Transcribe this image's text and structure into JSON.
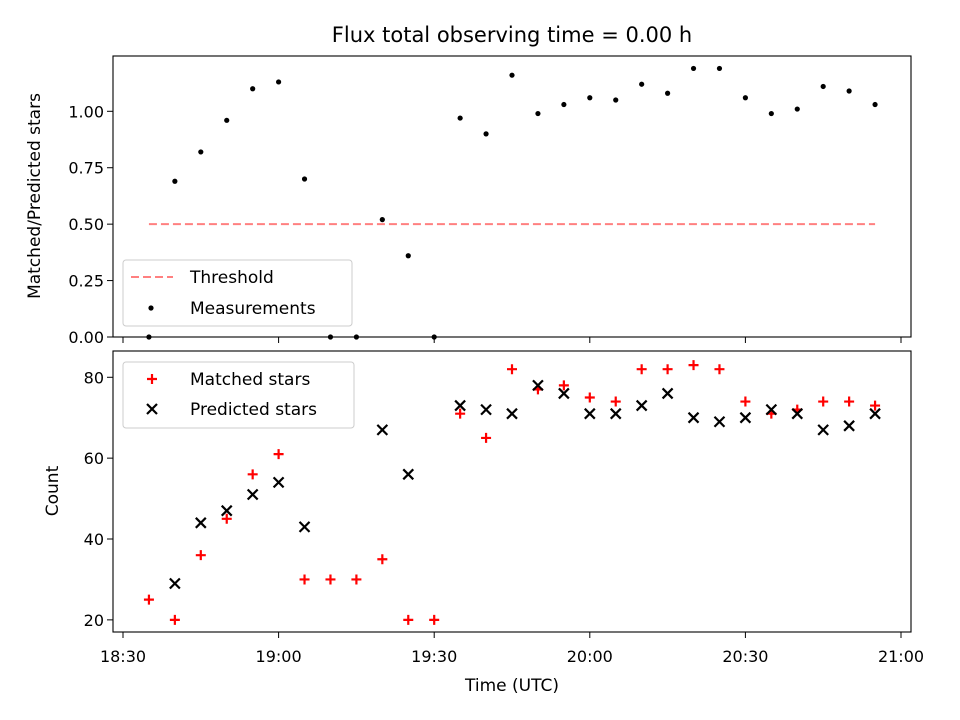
{
  "colors": {
    "threshold": "#ff8080",
    "measurements": "#000000",
    "matched": "#ff0000",
    "predicted": "#000000"
  },
  "chart_data": [
    {
      "type": "scatter",
      "title": "Flux total observing time = 0.00 h",
      "xlabel": "",
      "ylabel": "Matched/Predicted stars",
      "ylim": [
        0,
        1.245
      ],
      "yticks": [
        "0.00",
        "0.25",
        "0.50",
        "0.75",
        "1.00"
      ],
      "legend": "lower-left",
      "series": [
        {
          "name": "Threshold",
          "style": "dashed-line",
          "x": [
            "18:35",
            "20:55"
          ],
          "values": [
            0.5,
            0.5
          ]
        },
        {
          "name": "Measurements",
          "style": "dot",
          "x": [
            "18:35",
            "18:40",
            "18:45",
            "18:50",
            "18:55",
            "19:00",
            "19:05",
            "19:10",
            "19:15",
            "19:20",
            "19:25",
            "19:30",
            "19:35",
            "19:40",
            "19:45",
            "19:50",
            "19:55",
            "20:00",
            "20:05",
            "20:10",
            "20:15",
            "20:20",
            "20:25",
            "20:30",
            "20:35",
            "20:40",
            "20:45",
            "20:50",
            "20:55"
          ],
          "values": [
            0.0,
            0.69,
            0.82,
            0.96,
            1.1,
            1.13,
            0.7,
            0.0,
            0.0,
            0.52,
            0.36,
            0.0,
            0.97,
            0.9,
            1.16,
            0.99,
            1.03,
            1.06,
            1.05,
            1.12,
            1.08,
            1.19,
            1.19,
            1.06,
            0.99,
            1.01,
            1.11,
            1.09,
            1.03
          ]
        }
      ]
    },
    {
      "type": "scatter",
      "title": "",
      "xlabel": "Time (UTC)",
      "ylabel": "Count",
      "ylim": [
        17,
        86.5
      ],
      "yticks": [
        "20",
        "40",
        "60",
        "80"
      ],
      "xlim": [
        "18:30",
        "21:00"
      ],
      "xticks": [
        "18:30",
        "19:00",
        "19:30",
        "20:00",
        "20:30",
        "21:00"
      ],
      "legend": "upper-left",
      "series": [
        {
          "name": "Matched stars",
          "style": "plus",
          "x": [
            "18:35",
            "18:40",
            "18:45",
            "18:50",
            "18:55",
            "19:00",
            "19:05",
            "19:10",
            "19:15",
            "19:20",
            "19:25",
            "19:30",
            "19:35",
            "19:40",
            "19:45",
            "19:50",
            "19:55",
            "20:00",
            "20:05",
            "20:10",
            "20:15",
            "20:20",
            "20:25",
            "20:30",
            "20:35",
            "20:40",
            "20:45",
            "20:50",
            "20:55"
          ],
          "values": [
            25,
            20,
            36,
            45,
            56,
            61,
            30,
            30,
            30,
            35,
            20,
            20,
            71,
            65,
            82,
            77,
            78,
            75,
            74,
            82,
            82,
            83,
            82,
            74,
            71,
            72,
            74,
            74,
            73
          ]
        },
        {
          "name": "Predicted stars",
          "style": "x",
          "x": [
            "18:40",
            "18:45",
            "18:50",
            "18:55",
            "19:00",
            "19:05",
            "19:20",
            "19:25",
            "19:35",
            "19:40",
            "19:45",
            "19:50",
            "19:55",
            "20:00",
            "20:05",
            "20:10",
            "20:15",
            "20:20",
            "20:25",
            "20:30",
            "20:35",
            "20:40",
            "20:45",
            "20:50",
            "20:55"
          ],
          "values": [
            29,
            44,
            47,
            51,
            54,
            43,
            67,
            56,
            73,
            72,
            71,
            78,
            76,
            71,
            71,
            73,
            76,
            70,
            69,
            70,
            72,
            71,
            67,
            68,
            71
          ]
        }
      ]
    }
  ]
}
